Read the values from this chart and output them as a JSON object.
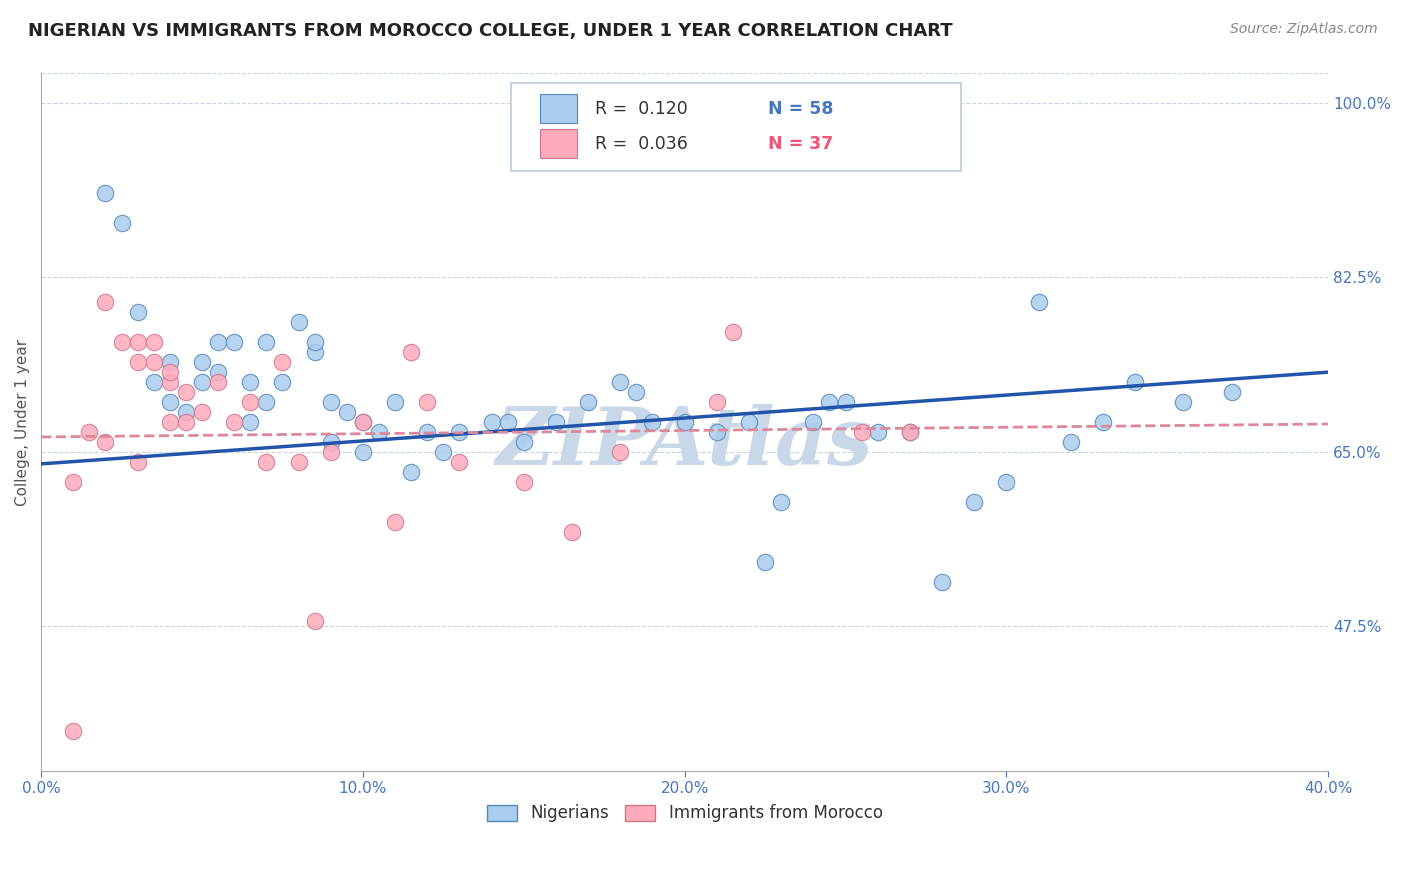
{
  "title": "NIGERIAN VS IMMIGRANTS FROM MOROCCO COLLEGE, UNDER 1 YEAR CORRELATION CHART",
  "source": "Source: ZipAtlas.com",
  "ylabel": "College, Under 1 year",
  "xlim": [
    0.0,
    0.4
  ],
  "ylim": [
    0.33,
    1.03
  ],
  "yticks": [
    0.475,
    0.65,
    0.825,
    1.0
  ],
  "ytick_labels": [
    "47.5%",
    "65.0%",
    "82.5%",
    "100.0%"
  ],
  "xticks": [
    0.0,
    0.1,
    0.2,
    0.3,
    0.4
  ],
  "xtick_labels": [
    "0.0%",
    "10.0%",
    "20.0%",
    "30.0%",
    "40.0%"
  ],
  "blue_color": "#AACCEE",
  "blue_edge_color": "#5588BB",
  "pink_color": "#FFAABB",
  "pink_edge_color": "#CC7788",
  "blue_line_color": "#2255AA",
  "pink_line_color": "#DD8899",
  "watermark": "ZIPAtlas",
  "watermark_color": "#C8D8E8",
  "legend_r1": "R =  0.120",
  "legend_n1": "N = 58",
  "legend_r2": "R =  0.036",
  "legend_n2": "N = 37",
  "legend_label1": "Nigerians",
  "legend_label2": "Immigrants from Morocco",
  "title_color": "#222222",
  "axis_tick_color": "#4477BB",
  "grid_color": "#C8D4E0",
  "blue_scatter_x": [
    0.02,
    0.025,
    0.03,
    0.035,
    0.04,
    0.04,
    0.045,
    0.05,
    0.05,
    0.055,
    0.055,
    0.06,
    0.065,
    0.065,
    0.07,
    0.07,
    0.075,
    0.08,
    0.085,
    0.085,
    0.09,
    0.09,
    0.095,
    0.1,
    0.1,
    0.105,
    0.11,
    0.115,
    0.12,
    0.125,
    0.13,
    0.14,
    0.145,
    0.15,
    0.16,
    0.17,
    0.18,
    0.185,
    0.19,
    0.2,
    0.21,
    0.22,
    0.225,
    0.23,
    0.24,
    0.245,
    0.25,
    0.26,
    0.27,
    0.28,
    0.29,
    0.3,
    0.31,
    0.32,
    0.33,
    0.34,
    0.355,
    0.37
  ],
  "blue_scatter_y": [
    0.91,
    0.88,
    0.79,
    0.72,
    0.74,
    0.7,
    0.69,
    0.72,
    0.74,
    0.73,
    0.76,
    0.76,
    0.72,
    0.68,
    0.7,
    0.76,
    0.72,
    0.78,
    0.75,
    0.76,
    0.7,
    0.66,
    0.69,
    0.65,
    0.68,
    0.67,
    0.7,
    0.63,
    0.67,
    0.65,
    0.67,
    0.68,
    0.68,
    0.66,
    0.68,
    0.7,
    0.72,
    0.71,
    0.68,
    0.68,
    0.67,
    0.68,
    0.54,
    0.6,
    0.68,
    0.7,
    0.7,
    0.67,
    0.67,
    0.52,
    0.6,
    0.62,
    0.8,
    0.66,
    0.68,
    0.72,
    0.7,
    0.71
  ],
  "pink_scatter_x": [
    0.01,
    0.02,
    0.025,
    0.03,
    0.03,
    0.035,
    0.035,
    0.04,
    0.04,
    0.04,
    0.045,
    0.045,
    0.05,
    0.055,
    0.06,
    0.065,
    0.07,
    0.075,
    0.08,
    0.085,
    0.09,
    0.1,
    0.11,
    0.115,
    0.12,
    0.13,
    0.15,
    0.165,
    0.18,
    0.21,
    0.215,
    0.255,
    0.27,
    0.01,
    0.015,
    0.02,
    0.03
  ],
  "pink_scatter_y": [
    0.37,
    0.8,
    0.76,
    0.74,
    0.76,
    0.74,
    0.76,
    0.72,
    0.68,
    0.73,
    0.68,
    0.71,
    0.69,
    0.72,
    0.68,
    0.7,
    0.64,
    0.74,
    0.64,
    0.48,
    0.65,
    0.68,
    0.58,
    0.75,
    0.7,
    0.64,
    0.62,
    0.57,
    0.65,
    0.7,
    0.77,
    0.67,
    0.67,
    0.62,
    0.67,
    0.66,
    0.64
  ],
  "blue_trend_x": [
    0.0,
    0.4
  ],
  "blue_trend_y": [
    0.638,
    0.73
  ],
  "pink_trend_x": [
    0.0,
    0.4
  ],
  "pink_trend_y": [
    0.665,
    0.678
  ]
}
